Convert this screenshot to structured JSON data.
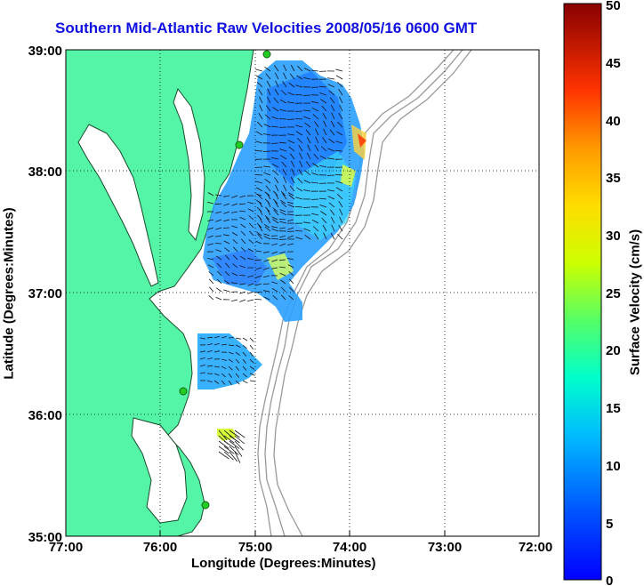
{
  "title": "Southern Mid-Atlantic Raw Velocities 2008/05/16 0600 GMT",
  "axes": {
    "xlabel": "Longitude (Degrees:Minutes)",
    "ylabel": "Latitude (Degrees:Minutes)",
    "x_ticks": [
      "77:00",
      "76:00",
      "75:00",
      "74:00",
      "73:00",
      "72:00"
    ],
    "y_ticks": [
      "39:00",
      "38:00",
      "37:00",
      "36:00",
      "35:00"
    ],
    "grid": "dotted"
  },
  "colorbar": {
    "label": "Surface Velocity (cm/s)",
    "ticks": [
      "0",
      "5",
      "10",
      "15",
      "20",
      "25",
      "30",
      "35",
      "40",
      "45",
      "50"
    ],
    "range": [
      0,
      50
    ],
    "colormap": "jet"
  },
  "colors": {
    "land": "#55f5a8",
    "title": "#1010e0",
    "bathymetry": "#999999",
    "station": "#22cc22"
  }
}
